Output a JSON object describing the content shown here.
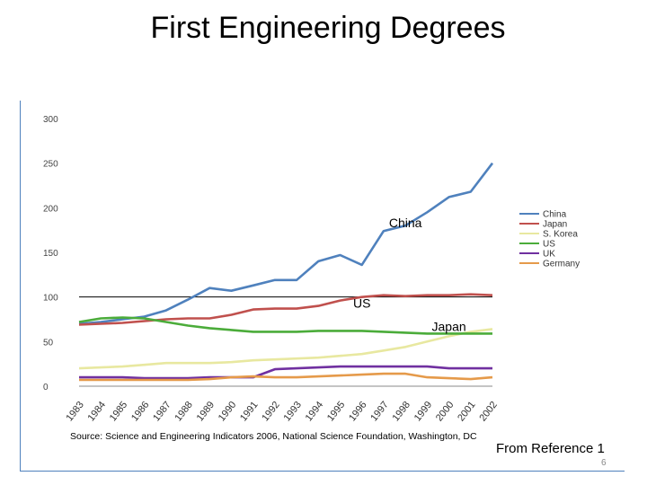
{
  "slide": {
    "title": "First Engineering Degrees",
    "source": "Source: Science and Engineering Indicators 2006, National Science Foundation, Washington, DC",
    "reference": "From Reference 1",
    "page_number": "6"
  },
  "chart_data": {
    "type": "line",
    "title": "",
    "xlabel": "",
    "ylabel": "",
    "ylim": [
      0,
      300
    ],
    "yticks": [
      0,
      50,
      100,
      150,
      200,
      250,
      300
    ],
    "grid": false,
    "legend": "right",
    "x": [
      "1983",
      "1984",
      "1985",
      "1986",
      "1987",
      "1988",
      "1989",
      "1990",
      "1991",
      "1992",
      "1993",
      "1994",
      "1995",
      "1996",
      "1997",
      "1998",
      "1999",
      "2000",
      "2001",
      "2002"
    ],
    "series": [
      {
        "name": "China",
        "color": "#4f81bd",
        "values": [
          70,
          72,
          75,
          78,
          85,
          97,
          110,
          107,
          113,
          119,
          119,
          140,
          147,
          136,
          174,
          180,
          195,
          212,
          218,
          250
        ]
      },
      {
        "name": "Japan",
        "color": "#c0504d",
        "values": [
          69,
          70,
          71,
          73,
          75,
          76,
          76,
          80,
          86,
          87,
          87,
          90,
          96,
          100,
          102,
          101,
          102,
          102,
          103,
          102
        ]
      },
      {
        "name": "S. Korea",
        "color": "#e8e8a0",
        "values": [
          20,
          21,
          22,
          24,
          26,
          26,
          26,
          27,
          29,
          30,
          31,
          32,
          34,
          36,
          40,
          44,
          50,
          56,
          61,
          64
        ]
      },
      {
        "name": "US",
        "color": "#4bac3a",
        "values": [
          72,
          76,
          77,
          76,
          72,
          68,
          65,
          63,
          61,
          61,
          61,
          62,
          62,
          62,
          61,
          60,
          59,
          59,
          59,
          59
        ]
      },
      {
        "name": "UK",
        "color": "#7030a0",
        "values": [
          10,
          10,
          10,
          9,
          9,
          9,
          10,
          10,
          10,
          19,
          20,
          21,
          22,
          22,
          22,
          22,
          22,
          20,
          20,
          20
        ]
      },
      {
        "name": "Germany",
        "color": "#e59a4a",
        "values": [
          7,
          7,
          7,
          7,
          7,
          7,
          8,
          10,
          11,
          10,
          10,
          11,
          12,
          13,
          14,
          14,
          10,
          9,
          8,
          10
        ]
      }
    ],
    "annotations": [
      {
        "text": "China",
        "series": "China"
      },
      {
        "text": "Japan",
        "series": "Japan"
      },
      {
        "text": "US",
        "series": "US"
      }
    ],
    "reference_line": {
      "y": 100
    }
  }
}
